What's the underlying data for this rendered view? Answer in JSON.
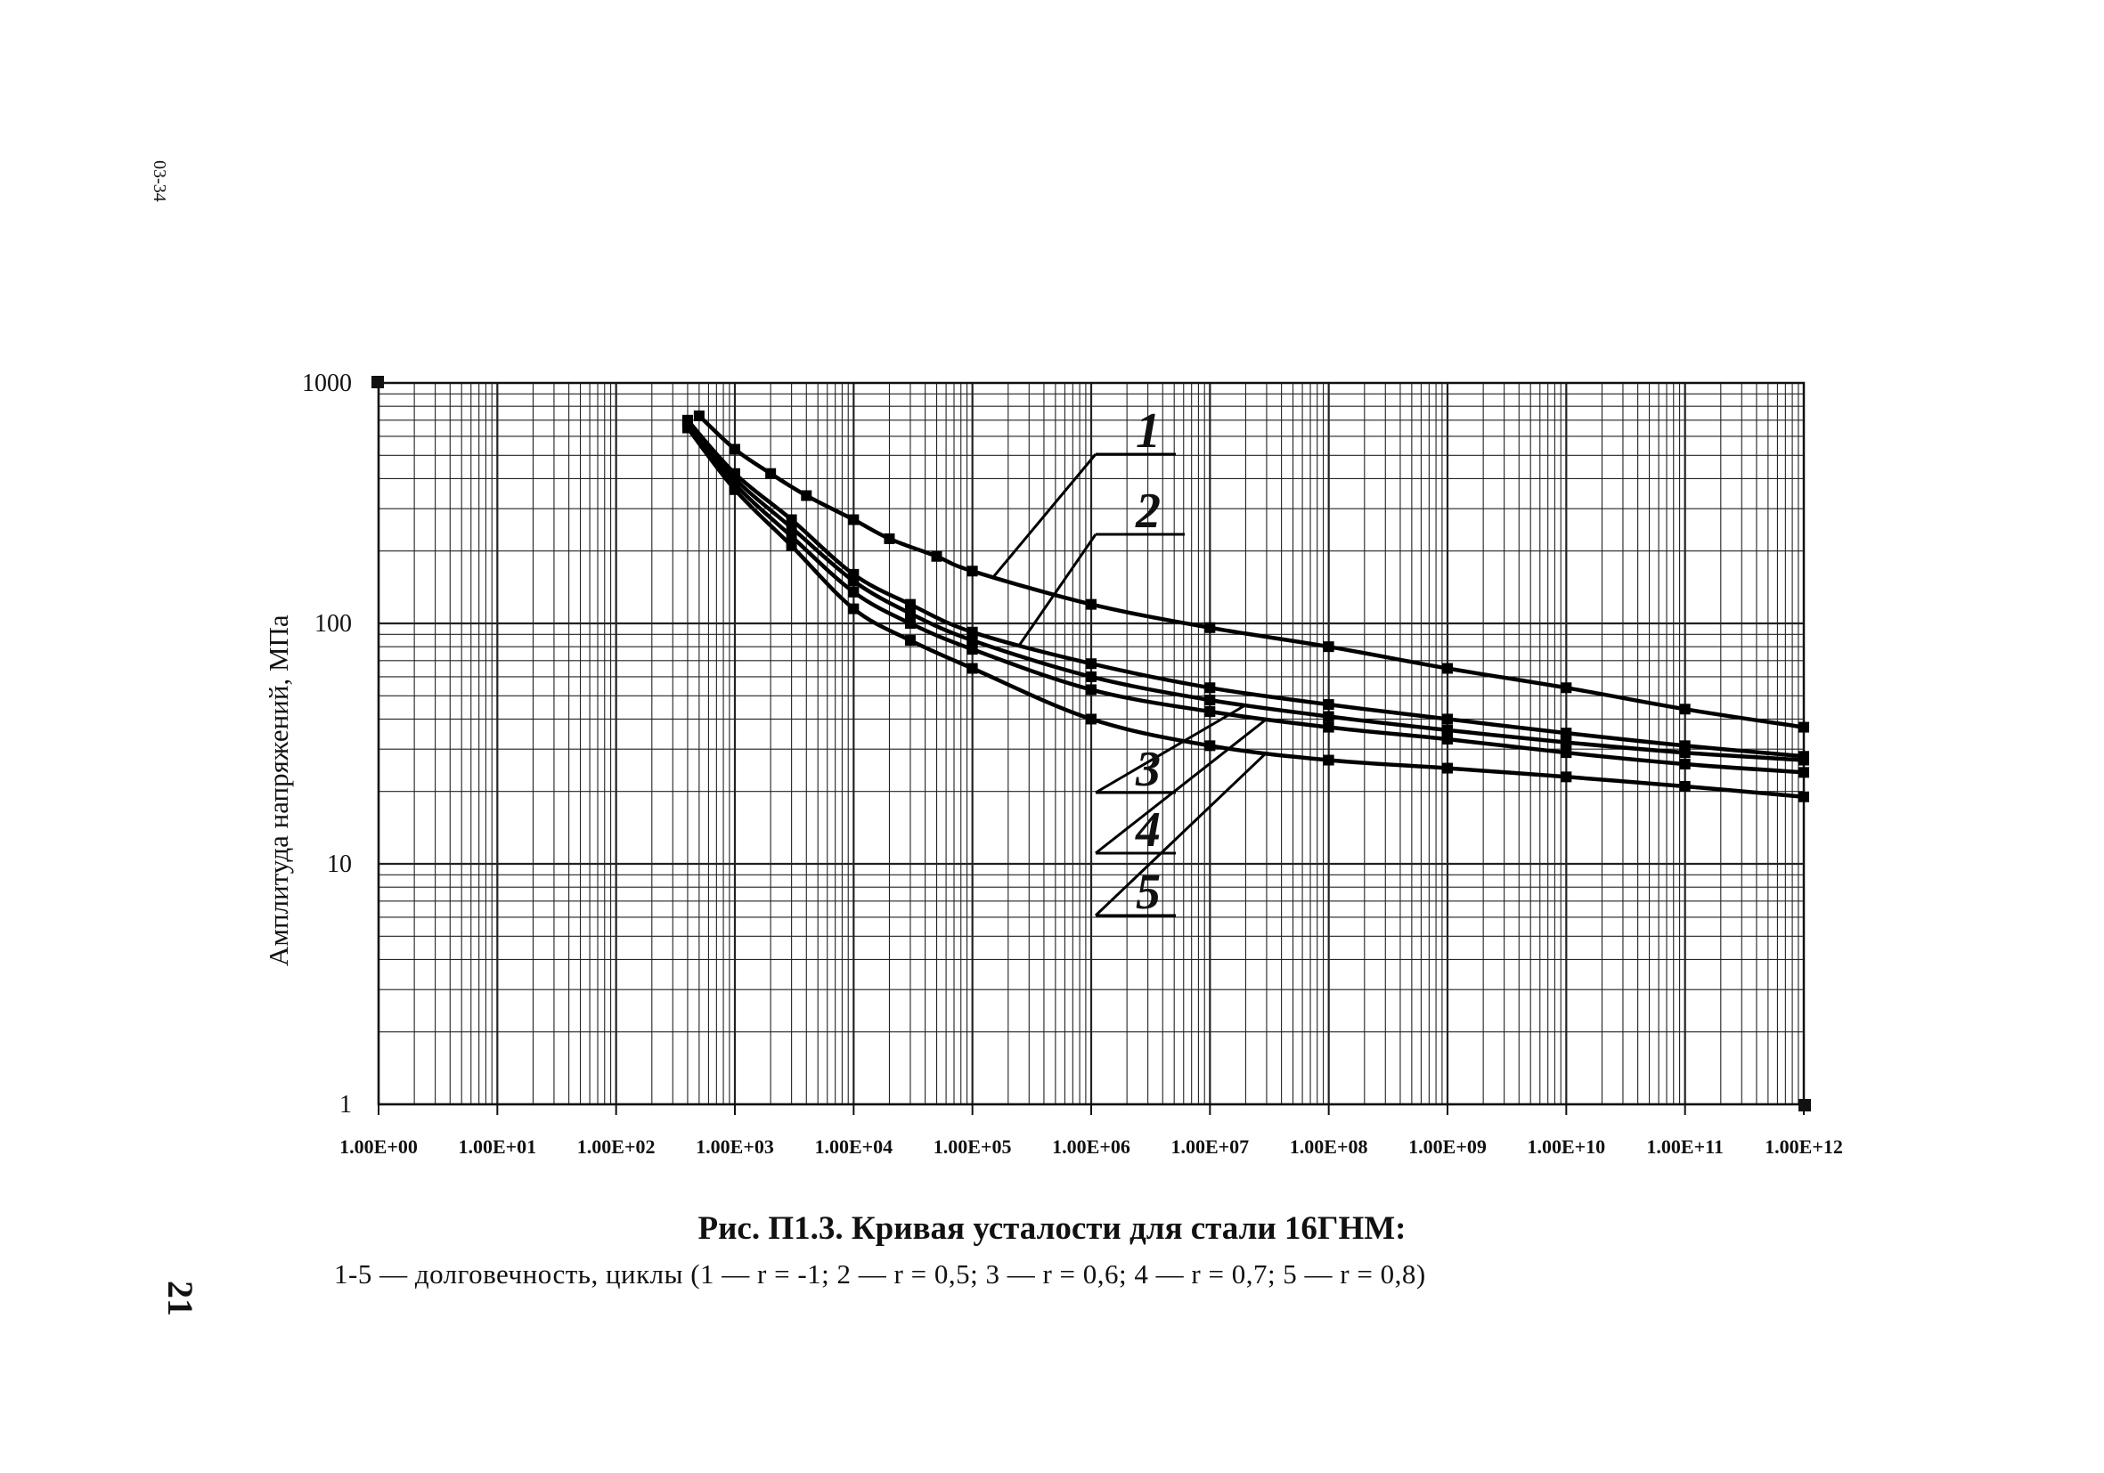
{
  "page": {
    "side_code": "03-34",
    "page_number": "21"
  },
  "caption": {
    "title": "Рис. П1.3. Кривая усталости для стали 16ГНМ:",
    "legend": "1-5 — долговечность, циклы (1 — r = -1; 2 — r = 0,5; 3 — r = 0,6; 4 — r = 0,7; 5 — r = 0,8)"
  },
  "chart_data": {
    "type": "line",
    "title": "",
    "xlabel": "",
    "ylabel": "Амплитуда напряжений, МПа",
    "x_scale": "log",
    "y_scale": "log",
    "xlim": [
      1,
      1000000000000
    ],
    "ylim": [
      1,
      1000
    ],
    "grid": true,
    "x_tick_labels": [
      "1.00E+00",
      "1.00E+01",
      "1.00E+02",
      "1.00E+03",
      "1.00E+04",
      "1.00E+05",
      "1.00E+06",
      "1.00E+07",
      "1.00E+08",
      "1.00E+09",
      "1.00E+10",
      "1.00E+11",
      "1.00E+12"
    ],
    "y_tick_labels": [
      "1",
      "10",
      "100",
      "1000"
    ],
    "y_tick_values": [
      1,
      10,
      100,
      1000
    ],
    "series": [
      {
        "name": "1",
        "x": [
          500,
          1000,
          2000,
          4000,
          10000,
          20000,
          50000,
          100000,
          1000000,
          10000000,
          100000000,
          1000000000,
          10000000000,
          100000000000,
          1000000000000
        ],
        "y": [
          730,
          530,
          420,
          340,
          270,
          225,
          190,
          165,
          120,
          96,
          80,
          65,
          54,
          44,
          37
        ]
      },
      {
        "name": "2",
        "x": [
          400,
          1000,
          3000,
          10000,
          30000,
          100000,
          1000000,
          10000000,
          100000000,
          1000000000,
          10000000000,
          100000000000,
          1000000000000
        ],
        "y": [
          700,
          420,
          270,
          160,
          120,
          92,
          68,
          54,
          46,
          40,
          35,
          31,
          28
        ]
      },
      {
        "name": "3",
        "x": [
          400,
          1000,
          3000,
          10000,
          30000,
          100000,
          1000000,
          10000000,
          100000000,
          1000000000,
          10000000000,
          100000000000,
          1000000000000
        ],
        "y": [
          690,
          400,
          250,
          150,
          110,
          85,
          60,
          48,
          41,
          36,
          32,
          29,
          27
        ]
      },
      {
        "name": "4",
        "x": [
          400,
          1000,
          3000,
          10000,
          30000,
          100000,
          1000000,
          10000000,
          100000000,
          1000000000,
          10000000000,
          100000000000,
          1000000000000
        ],
        "y": [
          680,
          380,
          230,
          135,
          100,
          78,
          53,
          43,
          37,
          33,
          29,
          26,
          24
        ]
      },
      {
        "name": "5",
        "x": [
          400,
          1000,
          3000,
          10000,
          30000,
          100000,
          1000000,
          10000000,
          100000000,
          1000000000,
          10000000000,
          100000000000,
          1000000000000
        ],
        "y": [
          650,
          360,
          210,
          115,
          85,
          65,
          40,
          31,
          27,
          25,
          23,
          21,
          19
        ]
      }
    ],
    "curve_labels": [
      "1",
      "2",
      "3",
      "4",
      "5"
    ]
  }
}
